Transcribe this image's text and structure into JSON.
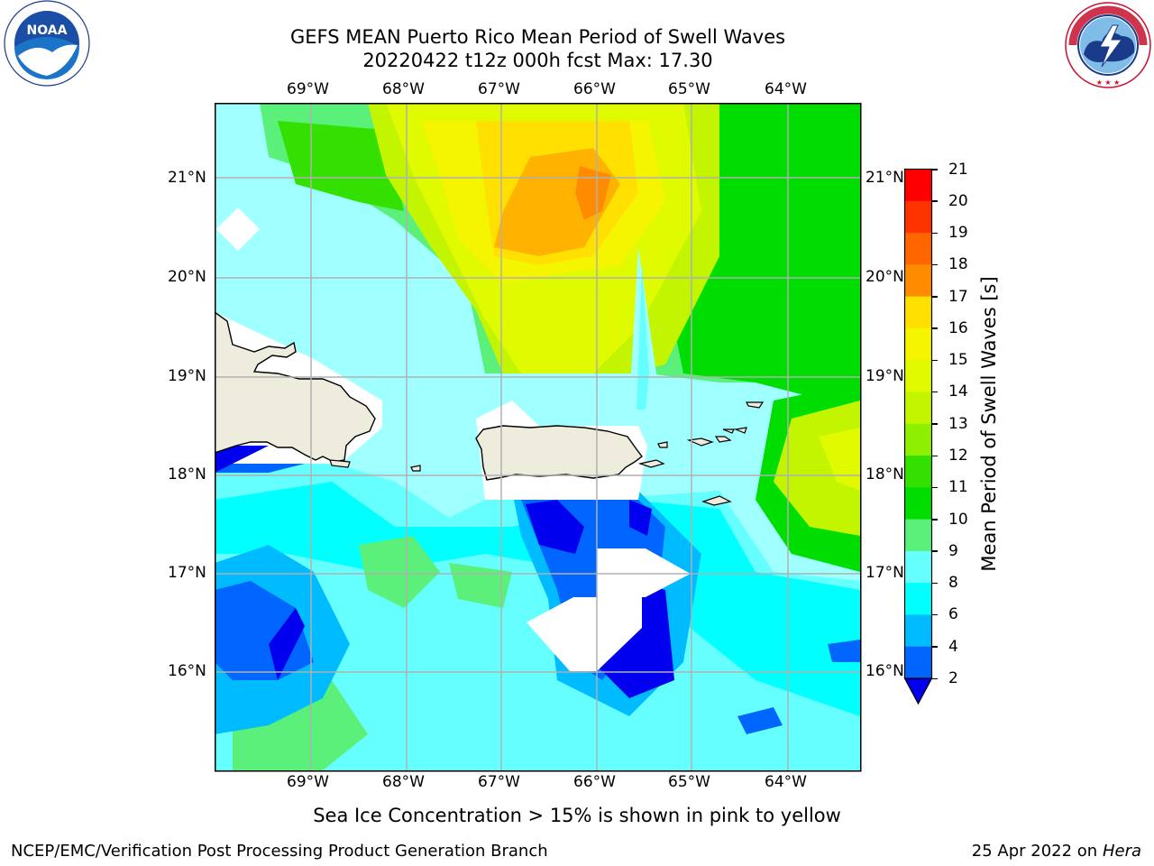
{
  "header": {
    "title_line1": "GEFS MEAN Puerto Rico Mean Period of Swell Waves",
    "title_line2": "20220422 t12z 000h fcst   Max: 17.30"
  },
  "logos": {
    "left_text": "NOAA",
    "left_ring_text": "NATIONAL OCEANIC AND ATMOSPHERIC ADMINISTRATION · U.S. DEPARTMENT OF COMMERCE",
    "right_ring_text": "NATIONAL WEATHER SERVICE"
  },
  "map": {
    "lon_labels": [
      "69°W",
      "68°W",
      "67°W",
      "66°W",
      "65°W",
      "64°W"
    ],
    "lat_labels": [
      "21°N",
      "20°N",
      "19°N",
      "18°N",
      "17°N",
      "16°N"
    ],
    "land_color": "#eeecdc",
    "no_data_color": "#ffffff"
  },
  "colorbar": {
    "label": "Mean Period of Swell Waves [s]",
    "ticks": [
      "21",
      "20",
      "19",
      "18",
      "17",
      "16",
      "15",
      "14",
      "13",
      "12",
      "11",
      "10",
      "9",
      "8",
      "6",
      "4",
      "2"
    ],
    "colors_top_to_bottom": [
      "#ff0000",
      "#ff3300",
      "#ff6600",
      "#ff8c00",
      "#ffb300",
      "#ffe000",
      "#f5f500",
      "#e0fa00",
      "#c3f500",
      "#8ef000",
      "#33e000",
      "#00dd00",
      "#5af07a",
      "#a0ffff",
      "#66ffff",
      "#00ffff",
      "#00bbff",
      "#0066ff",
      "#0000ee"
    ]
  },
  "footer": {
    "sea_ice_note": "Sea Ice Concentration > 15% is shown in pink to yellow",
    "branch": "NCEP/EMC/Verification Post Processing Product Generation Branch",
    "date_prefix": "25 Apr 2022 on ",
    "host": "Hera"
  }
}
